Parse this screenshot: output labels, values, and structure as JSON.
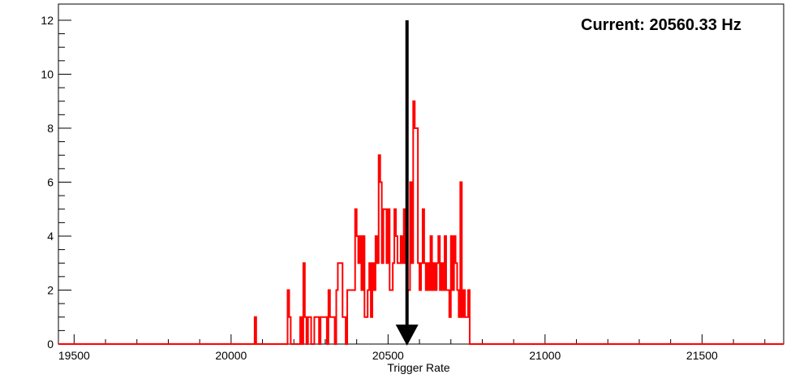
{
  "chart_data": {
    "type": "histogram",
    "xlabel": "Trigger Rate",
    "ylabel": "",
    "xlim": [
      19450,
      21760
    ],
    "ylim": [
      0,
      12.6
    ],
    "x_ticks": [
      19500,
      20000,
      20500,
      21000,
      21500
    ],
    "x_tick_labels": [
      "19500",
      "20000",
      "20500",
      "21000",
      "21500"
    ],
    "y_ticks": [
      0,
      2,
      4,
      6,
      8,
      10,
      12
    ],
    "y_tick_labels": [
      "0",
      "2",
      "4",
      "6",
      "8",
      "10",
      "12"
    ],
    "grid": false,
    "legend": "none",
    "bin_width": 5,
    "series": [
      {
        "color": "#ff0000",
        "bins": [
          [
            20075,
            1
          ],
          [
            20180,
            2
          ],
          [
            20185,
            1
          ],
          [
            20220,
            1
          ],
          [
            20230,
            3
          ],
          [
            20235,
            1
          ],
          [
            20245,
            1
          ],
          [
            20250,
            1
          ],
          [
            20265,
            1
          ],
          [
            20270,
            1
          ],
          [
            20275,
            1
          ],
          [
            20285,
            1
          ],
          [
            20290,
            1
          ],
          [
            20295,
            1
          ],
          [
            20300,
            1
          ],
          [
            20310,
            2
          ],
          [
            20315,
            1
          ],
          [
            20320,
            1
          ],
          [
            20325,
            1
          ],
          [
            20335,
            2
          ],
          [
            20340,
            3
          ],
          [
            20345,
            3
          ],
          [
            20350,
            3
          ],
          [
            20355,
            1
          ],
          [
            20360,
            1
          ],
          [
            20370,
            2
          ],
          [
            20375,
            2
          ],
          [
            20380,
            2
          ],
          [
            20385,
            2
          ],
          [
            20390,
            2
          ],
          [
            20395,
            5
          ],
          [
            20400,
            4
          ],
          [
            20405,
            3
          ],
          [
            20410,
            4
          ],
          [
            20415,
            2
          ],
          [
            20420,
            4
          ],
          [
            20425,
            1
          ],
          [
            20430,
            1
          ],
          [
            20435,
            2
          ],
          [
            20440,
            3
          ],
          [
            20445,
            1
          ],
          [
            20450,
            3
          ],
          [
            20455,
            2
          ],
          [
            20460,
            4
          ],
          [
            20465,
            3
          ],
          [
            20470,
            7
          ],
          [
            20475,
            6
          ],
          [
            20480,
            3
          ],
          [
            20485,
            5
          ],
          [
            20490,
            5
          ],
          [
            20495,
            3
          ],
          [
            20500,
            5
          ],
          [
            20505,
            2
          ],
          [
            20510,
            2
          ],
          [
            20515,
            3
          ],
          [
            20520,
            5
          ],
          [
            20525,
            4
          ],
          [
            20530,
            3
          ],
          [
            20535,
            3
          ],
          [
            20540,
            4
          ],
          [
            20545,
            3
          ],
          [
            20550,
            5
          ],
          [
            20555,
            3
          ],
          [
            20560,
            2
          ],
          [
            20565,
            2
          ],
          [
            20570,
            6
          ],
          [
            20575,
            3
          ],
          [
            20580,
            9
          ],
          [
            20585,
            8
          ],
          [
            20590,
            8
          ],
          [
            20595,
            3
          ],
          [
            20600,
            2
          ],
          [
            20605,
            3
          ],
          [
            20610,
            5
          ],
          [
            20615,
            3
          ],
          [
            20620,
            2
          ],
          [
            20625,
            3
          ],
          [
            20630,
            2
          ],
          [
            20635,
            4
          ],
          [
            20640,
            2
          ],
          [
            20645,
            3
          ],
          [
            20650,
            2
          ],
          [
            20655,
            3
          ],
          [
            20660,
            4
          ],
          [
            20665,
            2
          ],
          [
            20670,
            3
          ],
          [
            20675,
            2
          ],
          [
            20680,
            4
          ],
          [
            20685,
            2
          ],
          [
            20690,
            2
          ],
          [
            20695,
            1
          ],
          [
            20700,
            4
          ],
          [
            20705,
            2
          ],
          [
            20710,
            4
          ],
          [
            20715,
            3
          ],
          [
            20720,
            2
          ],
          [
            20725,
            1
          ],
          [
            20730,
            6
          ],
          [
            20735,
            1
          ],
          [
            20740,
            2
          ],
          [
            20745,
            1
          ],
          [
            20750,
            1
          ],
          [
            20755,
            2
          ]
        ]
      }
    ],
    "annotations": [
      {
        "type": "arrow",
        "x": 20560.33,
        "y_from": 12,
        "y_to": 0
      }
    ],
    "annotation_text": "Current: 20560.33 Hz"
  }
}
